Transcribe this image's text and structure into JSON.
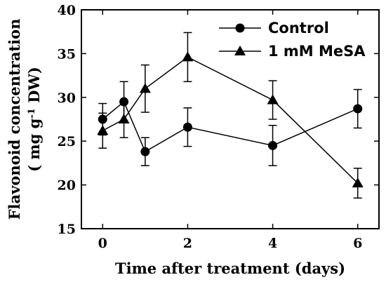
{
  "chart_data": {
    "type": "line",
    "x": [
      0,
      0.5,
      1,
      2,
      4,
      6
    ],
    "xlabel": "Time after treatment (days)",
    "ylabel": "Flavonoid concentration",
    "ylabel_line2_pre": "( mg g",
    "ylabel_line2_sup": "-1",
    "ylabel_line2_post": " DW)",
    "xlim": [
      -0.5,
      6.5
    ],
    "ylim": [
      15,
      40
    ],
    "xticks": [
      0,
      2,
      4,
      6
    ],
    "yticks": [
      15,
      20,
      25,
      30,
      35,
      40
    ],
    "grid": false,
    "legend_position": "top-right",
    "series": [
      {
        "name": "Control",
        "marker": "circle",
        "values": [
          27.5,
          29.5,
          23.8,
          26.6,
          24.5,
          28.7
        ],
        "errors": [
          1.8,
          2.3,
          1.6,
          2.2,
          2.3,
          2.2
        ]
      },
      {
        "name": "1 mM MeSA",
        "marker": "triangle",
        "values": [
          26.2,
          27.5,
          31.0,
          34.6,
          29.7,
          20.2
        ],
        "errors": [
          2.0,
          2.1,
          2.7,
          2.8,
          2.2,
          1.7
        ]
      }
    ]
  }
}
